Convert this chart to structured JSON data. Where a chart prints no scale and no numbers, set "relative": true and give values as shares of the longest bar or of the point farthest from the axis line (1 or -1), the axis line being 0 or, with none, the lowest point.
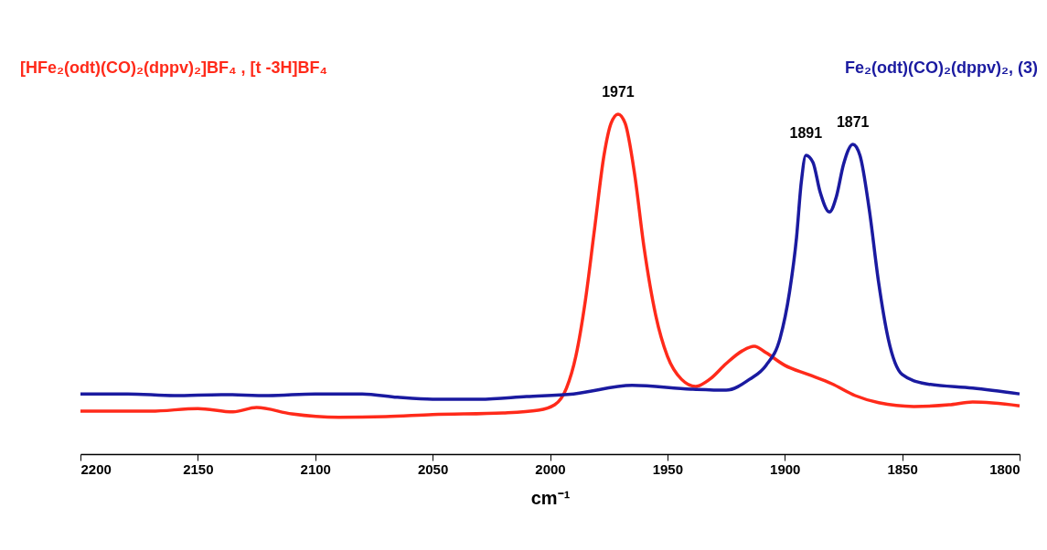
{
  "chart_data": {
    "type": "line",
    "relative": true,
    "xlabel": "cm⁻¹",
    "xlim": [
      2200,
      1800
    ],
    "xticks": [
      2200,
      2150,
      2100,
      2050,
      2000,
      1950,
      1900,
      1850,
      1800
    ],
    "series": [
      {
        "name": "[HFe₂(odt)(CO)₂(dppv)₂]BF₄ , [t -3H]BF₄",
        "color": "#ff2a1a",
        "x": [
          2200,
          2170,
          2150,
          2135,
          2125,
          2110,
          2090,
          2070,
          2050,
          2020,
          2005,
          1998,
          1993,
          1989,
          1985,
          1981,
          1977,
          1974,
          1971,
          1968,
          1964,
          1960,
          1955,
          1950,
          1944,
          1938,
          1932,
          1925,
          1918,
          1913,
          1908,
          1900,
          1890,
          1880,
          1870,
          1860,
          1845,
          1830,
          1820,
          1800
        ],
        "values": [
          0.126,
          0.126,
          0.134,
          0.124,
          0.137,
          0.118,
          0.108,
          0.11,
          0.116,
          0.121,
          0.129,
          0.145,
          0.194,
          0.288,
          0.449,
          0.664,
          0.879,
          0.973,
          1.0,
          0.973,
          0.825,
          0.61,
          0.409,
          0.288,
          0.22,
          0.199,
          0.22,
          0.266,
          0.304,
          0.317,
          0.298,
          0.261,
          0.234,
          0.207,
          0.172,
          0.151,
          0.14,
          0.145,
          0.153,
          0.142
        ]
      },
      {
        "name": "Fe₂(odt)(CO)₂(dppv)₂, (3)",
        "color": "#1a1aa0",
        "x": [
          2200,
          2180,
          2160,
          2140,
          2120,
          2100,
          2080,
          2065,
          2050,
          2030,
          2010,
          1990,
          1965,
          1940,
          1925,
          1915,
          1908,
          1902,
          1898,
          1895,
          1893,
          1891,
          1888,
          1885,
          1881,
          1878,
          1875,
          1871,
          1868,
          1864,
          1860,
          1856,
          1850,
          1840,
          1820,
          1800
        ],
        "values": [
          0.177,
          0.177,
          0.172,
          0.175,
          0.172,
          0.177,
          0.177,
          0.167,
          0.161,
          0.161,
          0.169,
          0.177,
          0.202,
          0.191,
          0.188,
          0.22,
          0.261,
          0.341,
          0.476,
          0.637,
          0.798,
          0.879,
          0.858,
          0.772,
          0.712,
          0.758,
          0.852,
          0.911,
          0.879,
          0.718,
          0.503,
          0.341,
          0.234,
          0.207,
          0.194,
          0.177
        ]
      }
    ],
    "annotations": [
      {
        "text": "1971",
        "x": 1971,
        "y": 1.0
      },
      {
        "text": "1891",
        "x": 1891,
        "y": 0.879
      },
      {
        "text": "1871",
        "x": 1871,
        "y": 0.911
      }
    ]
  }
}
